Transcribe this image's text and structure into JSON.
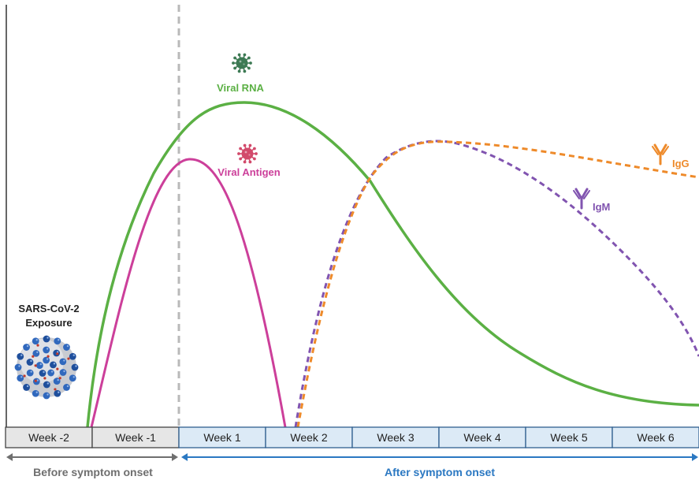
{
  "labels": {
    "exposure_line1": "SARS-CoV-2",
    "exposure_line2": "Exposure",
    "viral_rna": "Viral RNA",
    "viral_antigen": "Viral Antigen",
    "igm": "IgM",
    "igg": "IgG",
    "before_onset": "Before symptom onset",
    "after_onset": "After symptom onset"
  },
  "weeks": [
    {
      "label": "Week -2",
      "phase": "before"
    },
    {
      "label": "Week -1",
      "phase": "before"
    },
    {
      "label": "Week 1",
      "phase": "after"
    },
    {
      "label": "Week 2",
      "phase": "after"
    },
    {
      "label": "Week 3",
      "phase": "after"
    },
    {
      "label": "Week 4",
      "phase": "after"
    },
    {
      "label": "Week 5",
      "phase": "after"
    },
    {
      "label": "Week 6",
      "phase": "after"
    }
  ],
  "colors": {
    "viral_rna": "#5bb044",
    "viral_antigen": "#cc3f9a",
    "igm": "#8154b0",
    "igg": "#ee8a2a",
    "onset_line": "#b9b9b9",
    "before_cell_fill": "#e6e6e6",
    "after_cell_fill": "#dceaf6",
    "before_arrow": "#6f6f6f",
    "after_arrow": "#2b78c2",
    "viral_rna_icon": "#3d7a54",
    "viral_antigen_icon": "#d24a6b"
  },
  "icons": {
    "viral_rna": "virus-icon",
    "viral_antigen": "virus-icon",
    "igm": "antibody-icon",
    "igg": "antibody-icon",
    "exposure": "coronavirus-particle-icon"
  }
}
